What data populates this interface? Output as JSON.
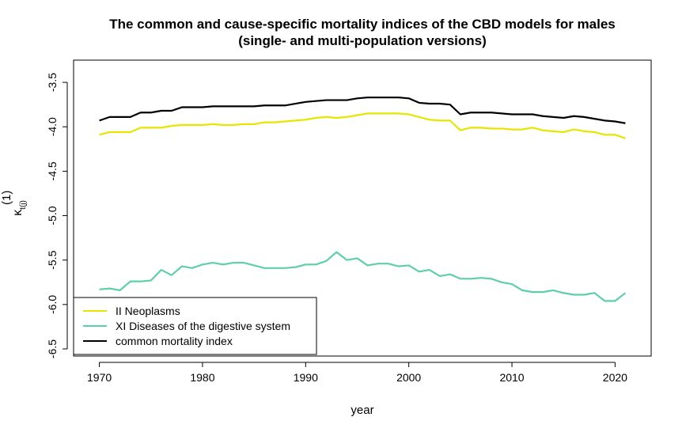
{
  "chart_data": {
    "type": "line",
    "title": "The common and cause-specific mortality indices of the CBD models for males",
    "subtitle": "(single- and multi-population versions)",
    "xlabel": "year",
    "ylabel_symbol": "κ",
    "ylabel_sup": "(1)",
    "ylabel_sub": "t(j)",
    "xlim": [
      1967.5,
      2023.5
    ],
    "ylim": [
      -6.58,
      -3.25
    ],
    "xticks": [
      1970,
      1980,
      1990,
      2000,
      2010,
      2020
    ],
    "yticks": [
      -3.5,
      -4.0,
      -4.5,
      -5.0,
      -5.5,
      -6.0,
      -6.5
    ],
    "ytick_labels": [
      "-3.5",
      "-4.0",
      "-4.5",
      "-5.0",
      "-5.5",
      "-6.0",
      "-6.5"
    ],
    "legend_position": "bottom-left",
    "x": [
      1970,
      1971,
      1972,
      1973,
      1974,
      1975,
      1976,
      1977,
      1978,
      1979,
      1980,
      1981,
      1982,
      1983,
      1984,
      1985,
      1986,
      1987,
      1988,
      1989,
      1990,
      1991,
      1992,
      1993,
      1994,
      1995,
      1996,
      1997,
      1998,
      1999,
      2000,
      2001,
      2002,
      2003,
      2004,
      2005,
      2006,
      2007,
      2008,
      2009,
      2010,
      2011,
      2012,
      2013,
      2014,
      2015,
      2016,
      2017,
      2018,
      2019,
      2020,
      2021
    ],
    "series": [
      {
        "name": "II Neoplasms",
        "color": "#e6e600",
        "values": [
          -4.09,
          -4.06,
          -4.06,
          -4.06,
          -4.01,
          -4.01,
          -4.01,
          -3.99,
          -3.98,
          -3.98,
          -3.98,
          -3.97,
          -3.98,
          -3.98,
          -3.97,
          -3.97,
          -3.95,
          -3.95,
          -3.94,
          -3.93,
          -3.92,
          -3.9,
          -3.89,
          -3.9,
          -3.89,
          -3.87,
          -3.85,
          -3.85,
          -3.85,
          -3.85,
          -3.86,
          -3.89,
          -3.92,
          -3.93,
          -3.93,
          -4.04,
          -4.01,
          -4.01,
          -4.02,
          -4.02,
          -4.03,
          -4.03,
          -4.01,
          -4.04,
          -4.05,
          -4.06,
          -4.03,
          -4.05,
          -4.06,
          -4.09,
          -4.09,
          -4.13
        ]
      },
      {
        "name": "XI Diseases of the digestive system",
        "color": "#5ecfa6",
        "values": [
          -5.83,
          -5.82,
          -5.84,
          -5.74,
          -5.74,
          -5.73,
          -5.61,
          -5.67,
          -5.57,
          -5.59,
          -5.55,
          -5.53,
          -5.55,
          -5.53,
          -5.53,
          -5.56,
          -5.59,
          -5.59,
          -5.59,
          -5.58,
          -5.55,
          -5.55,
          -5.51,
          -5.41,
          -5.5,
          -5.48,
          -5.56,
          -5.54,
          -5.54,
          -5.57,
          -5.56,
          -5.63,
          -5.61,
          -5.68,
          -5.66,
          -5.71,
          -5.71,
          -5.7,
          -5.71,
          -5.75,
          -5.77,
          -5.84,
          -5.86,
          -5.86,
          -5.84,
          -5.87,
          -5.89,
          -5.89,
          -5.87,
          -5.96,
          -5.96,
          -5.87
        ]
      },
      {
        "name": "common mortality index",
        "color": "#000000",
        "values": [
          -3.93,
          -3.89,
          -3.89,
          -3.89,
          -3.84,
          -3.84,
          -3.82,
          -3.82,
          -3.78,
          -3.78,
          -3.78,
          -3.77,
          -3.77,
          -3.77,
          -3.77,
          -3.77,
          -3.76,
          -3.76,
          -3.76,
          -3.74,
          -3.72,
          -3.71,
          -3.7,
          -3.7,
          -3.7,
          -3.68,
          -3.67,
          -3.67,
          -3.67,
          -3.67,
          -3.68,
          -3.73,
          -3.74,
          -3.74,
          -3.75,
          -3.86,
          -3.84,
          -3.84,
          -3.84,
          -3.85,
          -3.86,
          -3.86,
          -3.86,
          -3.88,
          -3.89,
          -3.9,
          -3.88,
          -3.89,
          -3.91,
          -3.93,
          -3.94,
          -3.96
        ]
      }
    ]
  }
}
